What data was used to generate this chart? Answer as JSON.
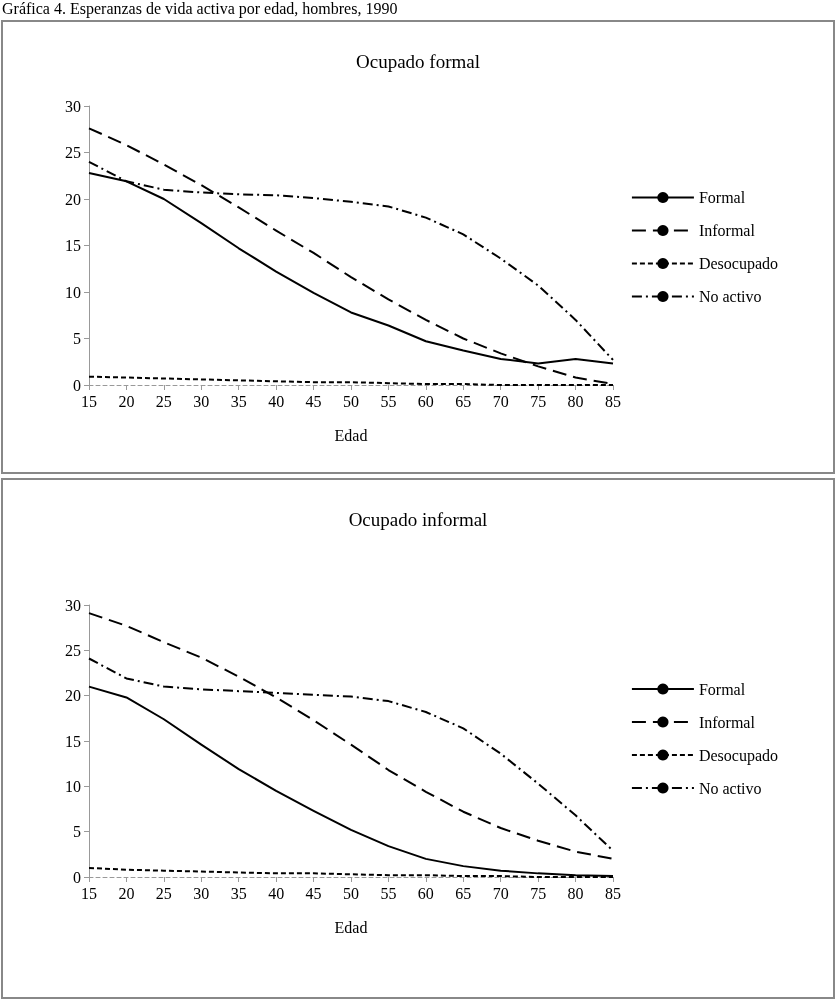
{
  "chart_data": [
    {
      "type": "line",
      "title": "Ocupado formal",
      "xlabel": "Edad",
      "annotations": [
        "Gráfica 4. Esperanzas de vida activa por edad, hombres, 1990"
      ],
      "categories": [
        "15",
        "20",
        "25",
        "30",
        "35",
        "40",
        "45",
        "50",
        "55",
        "60",
        "65",
        "70",
        "75",
        "80",
        "85"
      ],
      "ylim": [
        0,
        30
      ],
      "yticks": [
        0,
        5,
        10,
        15,
        20,
        25,
        30
      ],
      "grid": false,
      "legend": "right",
      "marker": "none",
      "series": [
        {
          "name": "Formal",
          "color": "#000000",
          "line_style": "solid",
          "values": [
            22.8,
            21.9,
            20.0,
            17.4,
            14.7,
            12.2,
            9.9,
            7.8,
            6.4,
            4.7,
            3.7,
            2.8,
            2.3,
            2.8,
            2.3
          ]
        },
        {
          "name": "Informal",
          "color": "#000000",
          "line_style": "dashed",
          "values": [
            27.6,
            25.8,
            23.7,
            21.5,
            19.1,
            16.6,
            14.2,
            11.6,
            9.2,
            7.0,
            5.0,
            3.4,
            2.0,
            0.8,
            0.1
          ]
        },
        {
          "name": "Desocupado",
          "color": "#000000",
          "line_style": "dotted",
          "values": [
            0.9,
            0.8,
            0.7,
            0.6,
            0.5,
            0.4,
            0.3,
            0.3,
            0.2,
            0.1,
            0.1,
            0.0,
            0.0,
            0.0,
            0.0
          ]
        },
        {
          "name": "No activo",
          "color": "#000000",
          "line_style": "dashdot",
          "values": [
            24.0,
            21.9,
            21.0,
            20.7,
            20.5,
            20.4,
            20.1,
            19.7,
            19.2,
            18.0,
            16.2,
            13.6,
            10.7,
            7.0,
            2.7
          ]
        }
      ]
    },
    {
      "type": "line",
      "title": "Ocupado informal",
      "xlabel": "Edad",
      "categories": [
        "15",
        "20",
        "25",
        "30",
        "35",
        "40",
        "45",
        "50",
        "55",
        "60",
        "65",
        "70",
        "75",
        "80",
        "85"
      ],
      "ylim": [
        0,
        30
      ],
      "yticks": [
        0,
        5,
        10,
        15,
        20,
        25,
        30
      ],
      "grid": false,
      "legend": "right",
      "marker": "none",
      "series": [
        {
          "name": "Formal",
          "color": "#000000",
          "line_style": "solid",
          "values": [
            21.0,
            19.8,
            17.4,
            14.6,
            11.9,
            9.5,
            7.3,
            5.2,
            3.4,
            2.0,
            1.2,
            0.7,
            0.4,
            0.2,
            0.1
          ]
        },
        {
          "name": "Informal",
          "color": "#000000",
          "line_style": "dashed",
          "values": [
            29.1,
            27.7,
            25.9,
            24.2,
            22.1,
            19.8,
            17.3,
            14.6,
            11.8,
            9.4,
            7.2,
            5.4,
            4.0,
            2.8,
            2.0
          ]
        },
        {
          "name": "Desocupado",
          "color": "#000000",
          "line_style": "dotted",
          "values": [
            1.0,
            0.8,
            0.7,
            0.6,
            0.5,
            0.4,
            0.4,
            0.3,
            0.2,
            0.2,
            0.1,
            0.1,
            0.0,
            0.0,
            0.0
          ]
        },
        {
          "name": "No activo",
          "color": "#000000",
          "line_style": "dashdot",
          "values": [
            24.1,
            21.9,
            21.0,
            20.7,
            20.5,
            20.3,
            20.1,
            19.9,
            19.4,
            18.2,
            16.4,
            13.6,
            10.3,
            6.8,
            2.9
          ]
        }
      ]
    }
  ]
}
